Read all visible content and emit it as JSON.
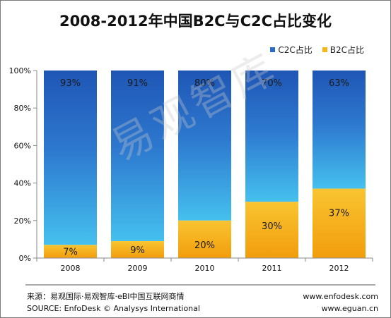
{
  "title": "2008-2012年中国B2C与C2C占比变化",
  "legend": [
    {
      "label": "C2C占比",
      "color": "#2a6bc4"
    },
    {
      "label": "B2C占比",
      "color": "#f6b619"
    }
  ],
  "watermark": "易观智库",
  "footer": {
    "source_cn": "来源：易观国际·易观智库·eBI中国互联网商情",
    "source_en": "SOURCE: EnfoDesk © Analysys International",
    "site1": "www.enfodesk.com",
    "site2": "www.eguan.cn"
  },
  "chart_data": {
    "type": "bar",
    "stacked": true,
    "categories": [
      "2008",
      "2009",
      "2010",
      "2011",
      "2012"
    ],
    "series": [
      {
        "name": "B2C占比",
        "values": [
          7,
          9,
          20,
          30,
          37
        ],
        "labels": [
          "7%",
          "9%",
          "20%",
          "30%",
          "37%"
        ]
      },
      {
        "name": "C2C占比",
        "values": [
          93,
          91,
          80,
          70,
          63
        ],
        "labels": [
          "93%",
          "91%",
          "80%",
          "70%",
          "63%"
        ]
      }
    ],
    "y_ticks": [
      "0%",
      "20%",
      "40%",
      "60%",
      "80%",
      "100%"
    ],
    "ylim": [
      0,
      100
    ],
    "grid": false,
    "legend_position": "top-right"
  }
}
